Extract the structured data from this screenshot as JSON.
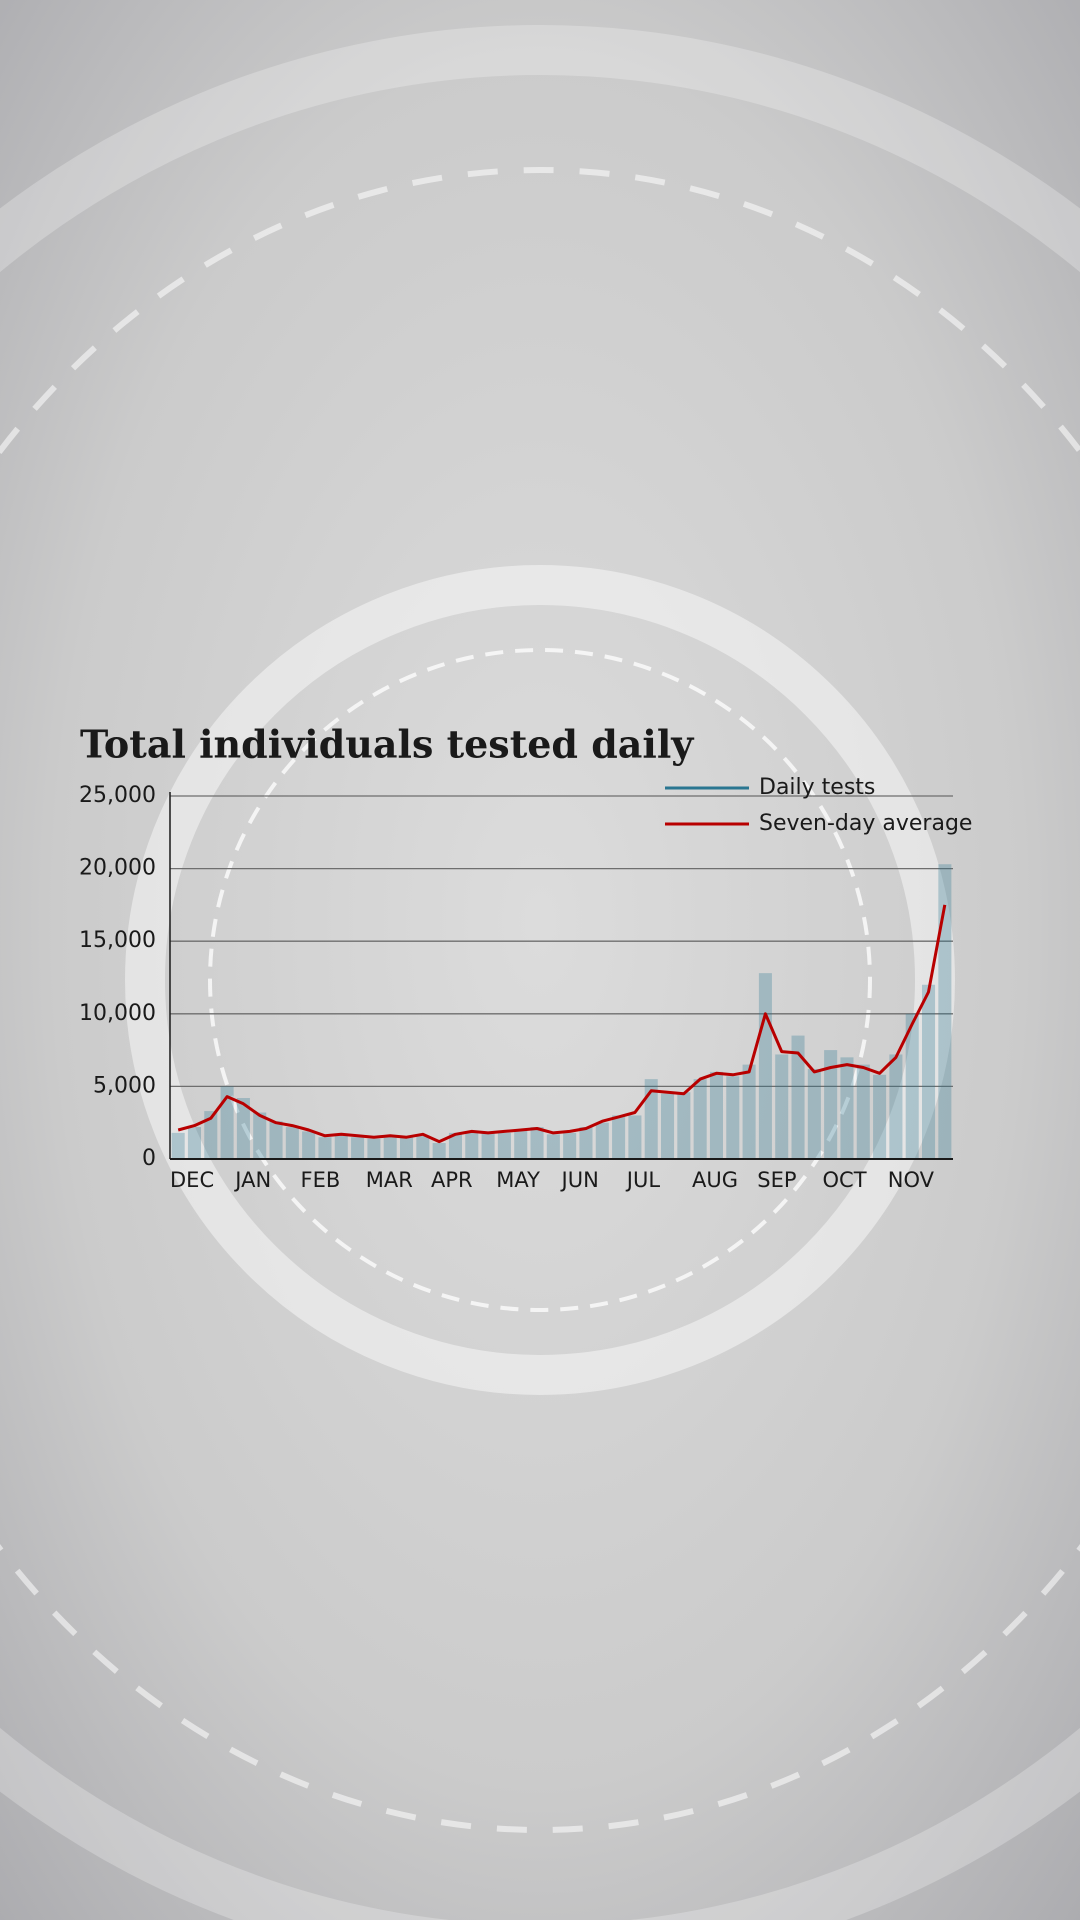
{
  "chart_data": {
    "type": "bar-line",
    "title": "Total individuals tested daily",
    "categories": [
      "DEC",
      null,
      null,
      null,
      "JAN",
      null,
      null,
      null,
      "FEB",
      null,
      null,
      null,
      "MAR",
      null,
      null,
      null,
      "APR",
      null,
      null,
      null,
      "MAY",
      null,
      null,
      null,
      "JUN",
      null,
      null,
      null,
      "JUL",
      null,
      null,
      null,
      "AUG",
      null,
      null,
      null,
      "SEP",
      null,
      null,
      null,
      "OCT",
      null,
      null,
      null,
      "NOV",
      null,
      null,
      null
    ],
    "series": [
      {
        "name": "Daily tests",
        "color": "#2a7691",
        "kind": "bar",
        "values": [
          1800,
          2200,
          3300,
          5000,
          4200,
          3200,
          2600,
          2200,
          1900,
          1500,
          1700,
          1500,
          1400,
          1600,
          1500,
          1600,
          1100,
          1800,
          1900,
          1800,
          1800,
          2000,
          2200,
          1700,
          1800,
          2200,
          2500,
          3000,
          3000,
          5500,
          4500,
          4600,
          5500,
          6000,
          5700,
          6500,
          12800,
          7200,
          8500,
          6200,
          7500,
          7000,
          6500,
          5800,
          7200,
          10000,
          12000,
          20300
        ]
      },
      {
        "name": "Seven-day average",
        "color": "#b80000",
        "kind": "line",
        "values": [
          2000,
          2300,
          2800,
          4300,
          3800,
          3000,
          2500,
          2300,
          2000,
          1600,
          1700,
          1600,
          1500,
          1600,
          1500,
          1700,
          1200,
          1700,
          1900,
          1800,
          1900,
          2000,
          2100,
          1800,
          1900,
          2100,
          2600,
          2900,
          3200,
          4700,
          4600,
          4500,
          5500,
          5900,
          5800,
          6000,
          10000,
          7400,
          7300,
          6000,
          6300,
          6500,
          6300,
          5900,
          7000,
          9300,
          11500,
          17500
        ]
      }
    ],
    "ylim": [
      0,
      25000
    ],
    "yticks": [
      0,
      {
        "value": 5000,
        "label": "5,000"
      },
      {
        "value": 10000,
        "label": "10,000"
      },
      {
        "value": 15000,
        "label": "15,000"
      },
      {
        "value": 20000,
        "label": "20,000"
      },
      {
        "value": 25000,
        "label": "25,000"
      }
    ],
    "grid": true,
    "legend": "top-right"
  }
}
